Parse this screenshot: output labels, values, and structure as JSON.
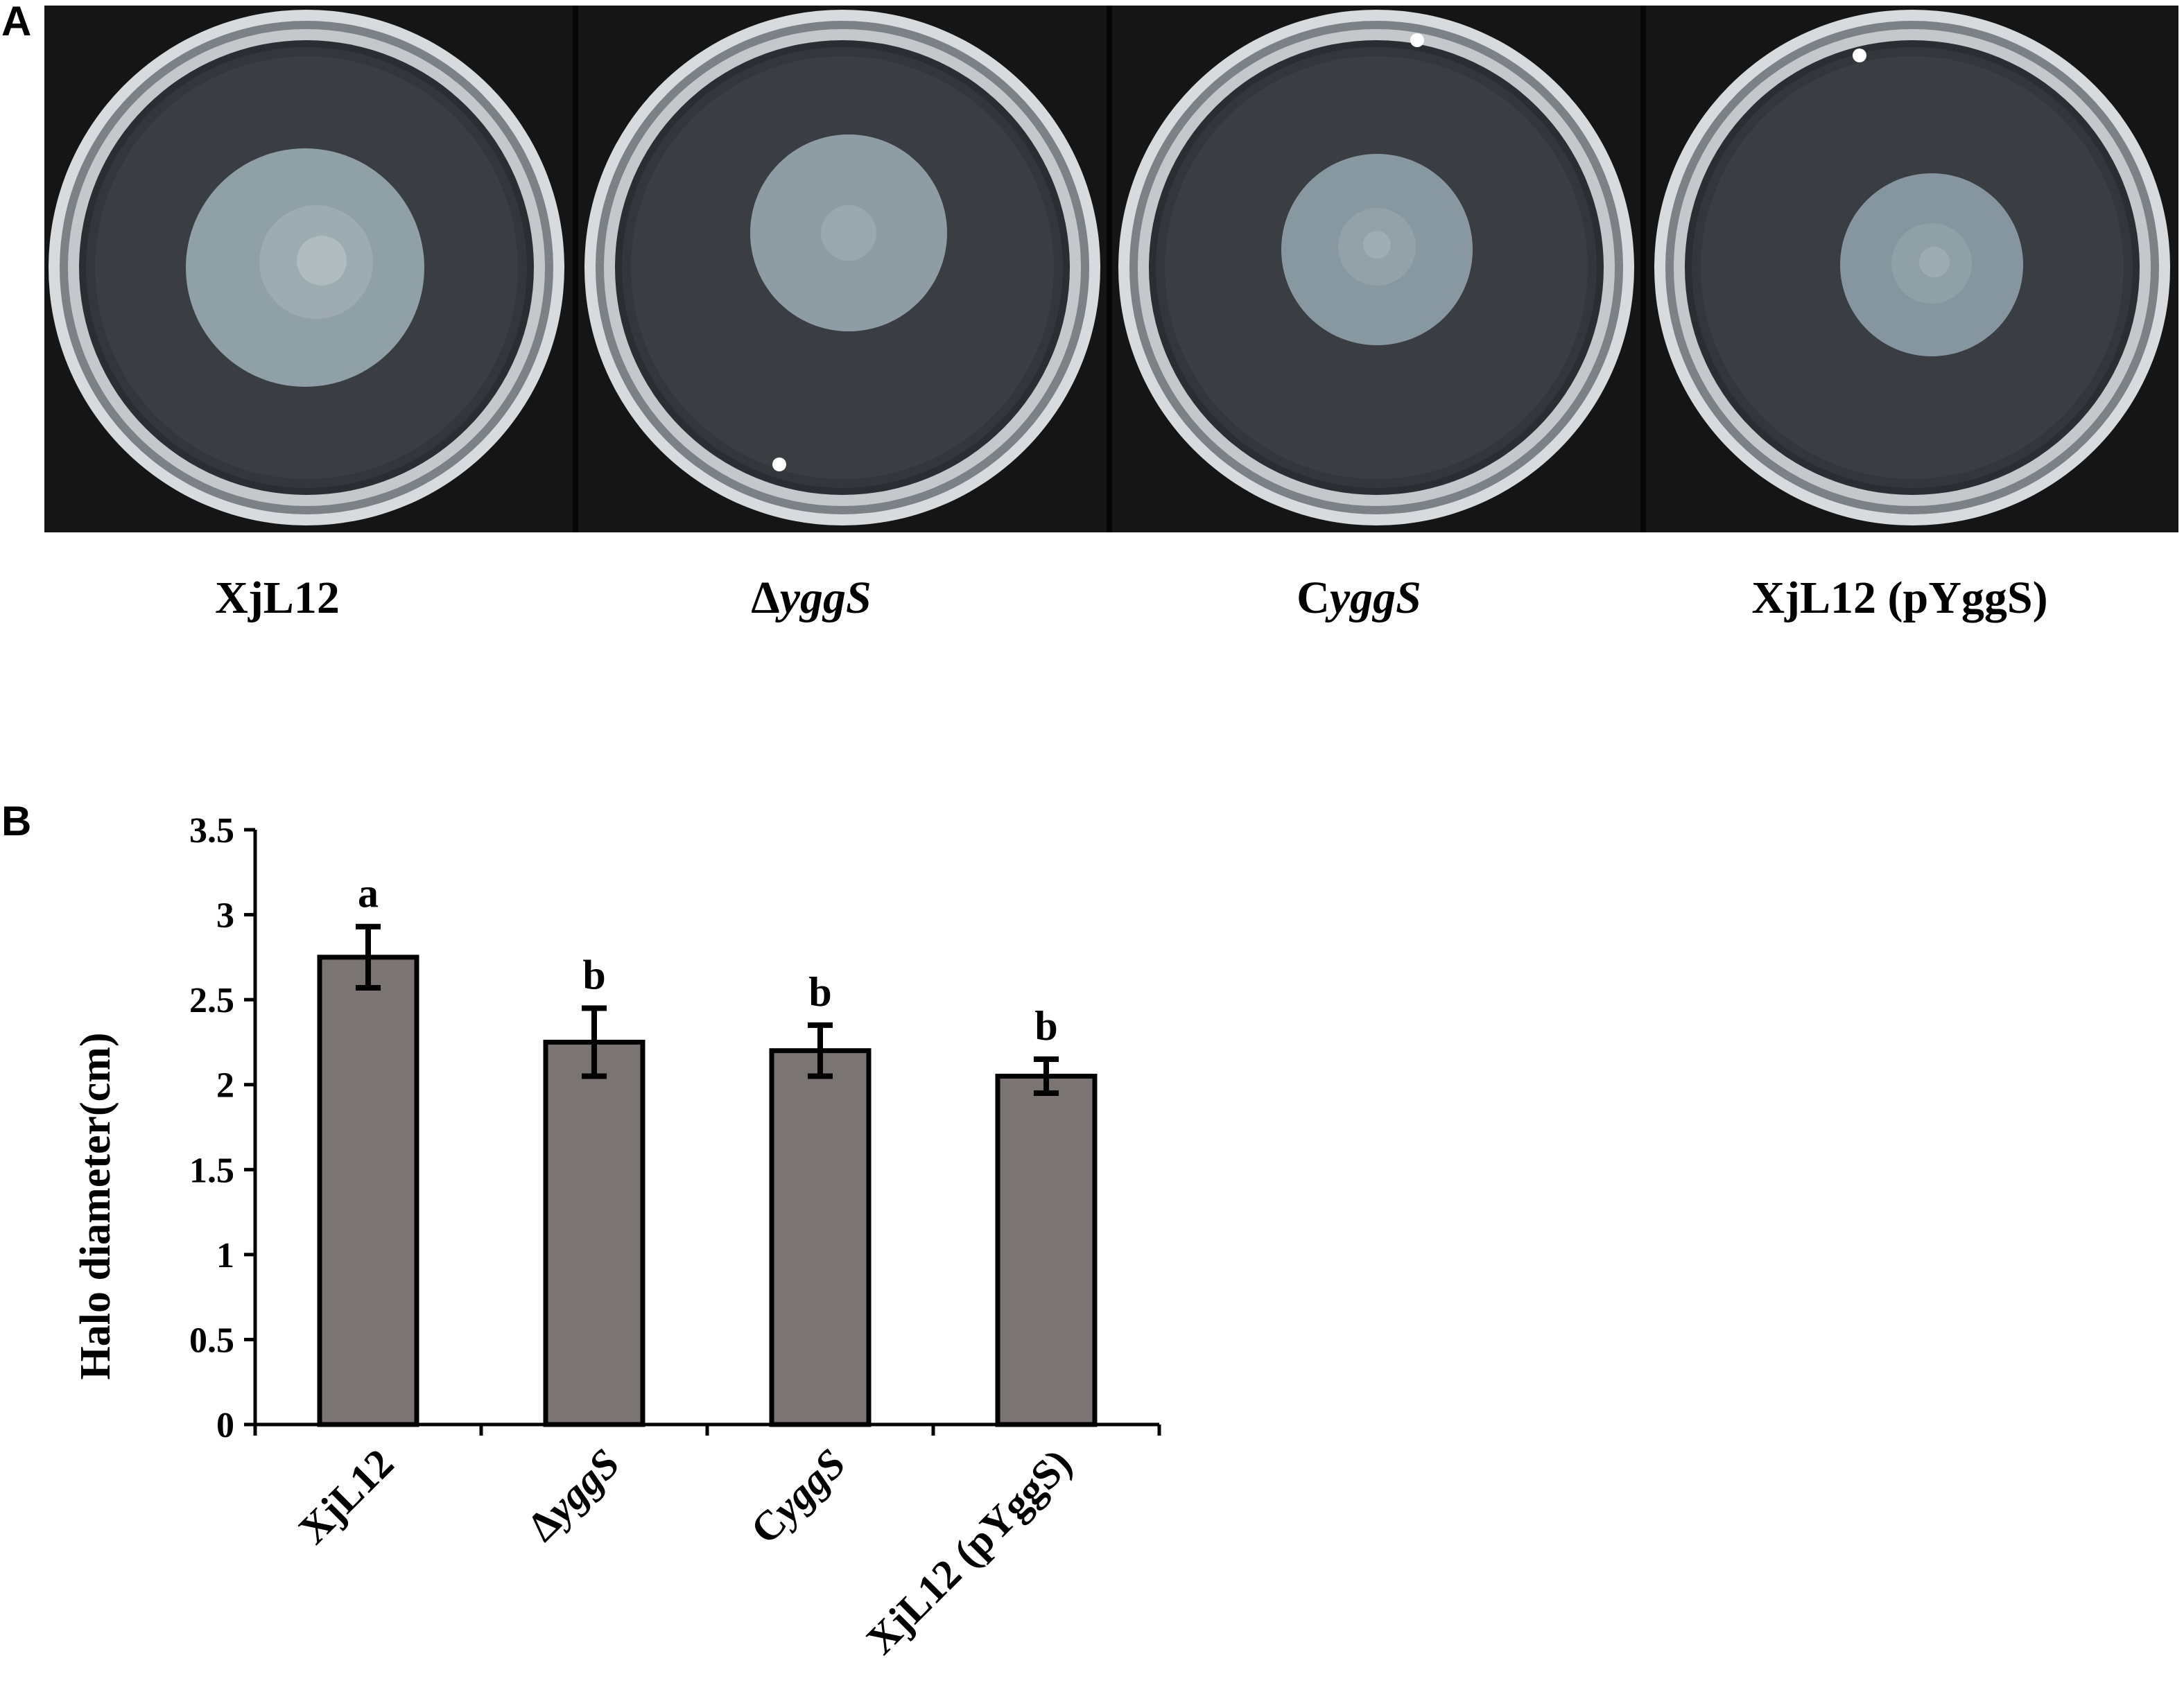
{
  "panels": {
    "a_letter": "A",
    "b_letter": "B"
  },
  "plates": [
    {
      "label_prefix": "",
      "label_italic": "",
      "label_plain": "XjL12",
      "halo_diameter_cm": 2.75
    },
    {
      "label_prefix": "Δ",
      "label_italic": "yggS",
      "label_plain": "",
      "halo_diameter_cm": 2.25
    },
    {
      "label_prefix": "C",
      "label_italic": "yggS",
      "label_plain": "",
      "halo_diameter_cm": 2.2
    },
    {
      "label_prefix": "",
      "label_italic": "",
      "label_plain": "XjL12 (pYggS)",
      "halo_diameter_cm": 2.05
    }
  ],
  "chart_data": {
    "type": "bar",
    "categories": [
      "XjL12",
      "ΔyggS",
      "CyggS",
      "XjL12 (pYggS)"
    ],
    "values": [
      2.75,
      2.25,
      2.2,
      2.05
    ],
    "error": [
      0.18,
      0.2,
      0.15,
      0.1
    ],
    "significance": [
      "a",
      "b",
      "b",
      "b"
    ],
    "ylabel": "Halo diameter(cm)",
    "xlabel": "",
    "ylim": [
      0,
      3.5
    ],
    "yticks": [
      "0",
      "0.5",
      "1",
      "1.5",
      "2",
      "2.5",
      "3",
      "3.5"
    ],
    "bar_color": "#7a7472",
    "grid": false
  }
}
